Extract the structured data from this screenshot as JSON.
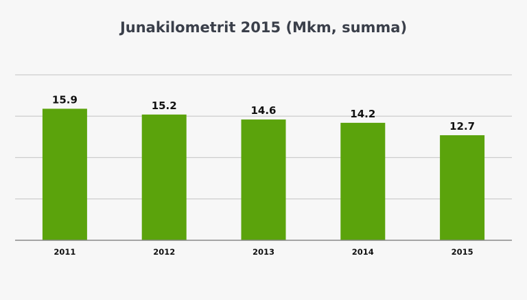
{
  "chart_data": {
    "type": "bar",
    "title": "Junakilometrit 2015 (Mkm, summa)",
    "xlabel": "",
    "ylabel": "",
    "categories": [
      "2011",
      "2012",
      "2013",
      "2014",
      "2015"
    ],
    "values": [
      15.9,
      15.2,
      14.6,
      14.2,
      12.7
    ],
    "value_labels": [
      "15.9",
      "15.2",
      "14.6",
      "14.2",
      "12.7"
    ],
    "ylim": [
      0,
      20
    ],
    "grid": true,
    "bar_color": "#5ba30c",
    "grid_color": "#cccccc",
    "axis_color": "#888888",
    "title_color": "#3a3f4a"
  }
}
